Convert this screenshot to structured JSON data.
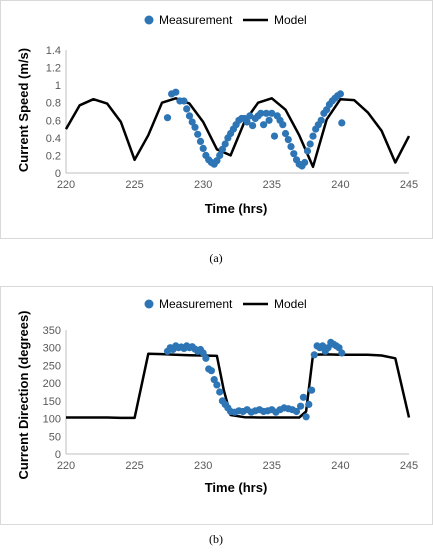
{
  "chart_data": [
    {
      "type": "line",
      "panel_label": "(a)",
      "xlabel": "Time (hrs)",
      "ylabel": "Current Speed (m/s)",
      "xlim": [
        220,
        245
      ],
      "ylim": [
        0,
        1.4
      ],
      "xticks": [
        220,
        225,
        230,
        235,
        240,
        245
      ],
      "yticks": [
        0,
        0.2,
        0.4,
        0.6,
        0.8,
        1.0,
        1.2,
        1.4
      ],
      "ytick_labels": [
        "0",
        "0.2",
        "0.4",
        "0.6",
        "0.8",
        "1",
        "1.2",
        "1.4"
      ],
      "legend_position": "top-center",
      "grid": false,
      "series": [
        {
          "name": "Measurement",
          "kind": "scatter",
          "color": "#2E75B6",
          "x": [
            227.4,
            227.7,
            228.0,
            228.3,
            228.6,
            228.8,
            229.0,
            229.2,
            229.4,
            229.6,
            229.8,
            230.0,
            230.2,
            230.4,
            230.6,
            230.8,
            231.0,
            231.2,
            231.4,
            231.6,
            231.8,
            232.0,
            232.2,
            232.4,
            232.6,
            232.8,
            233.0,
            233.2,
            233.4,
            233.6,
            233.8,
            234.0,
            234.2,
            234.4,
            234.6,
            234.8,
            235.0,
            235.2,
            235.4,
            235.6,
            235.8,
            236.0,
            236.2,
            236.4,
            236.6,
            236.8,
            237.0,
            237.2,
            237.4,
            237.6,
            237.8,
            238.0,
            238.2,
            238.4,
            238.6,
            238.8,
            239.0,
            239.2,
            239.4,
            239.6,
            239.8,
            240.0,
            240.1
          ],
          "y": [
            0.63,
            0.9,
            0.92,
            0.82,
            0.82,
            0.73,
            0.65,
            0.58,
            0.52,
            0.44,
            0.36,
            0.28,
            0.2,
            0.15,
            0.12,
            0.1,
            0.14,
            0.2,
            0.27,
            0.33,
            0.4,
            0.45,
            0.5,
            0.55,
            0.6,
            0.62,
            0.62,
            0.58,
            0.65,
            0.54,
            0.62,
            0.65,
            0.68,
            0.55,
            0.68,
            0.6,
            0.68,
            0.42,
            0.65,
            0.6,
            0.55,
            0.45,
            0.38,
            0.3,
            0.22,
            0.15,
            0.1,
            0.08,
            0.12,
            0.25,
            0.33,
            0.42,
            0.5,
            0.55,
            0.6,
            0.68,
            0.72,
            0.78,
            0.82,
            0.85,
            0.88,
            0.9,
            0.57
          ]
        },
        {
          "name": "Model",
          "kind": "line",
          "color": "#000000",
          "x": [
            220,
            221,
            222,
            223,
            224,
            225,
            226,
            227,
            228,
            229,
            230,
            231,
            232,
            233,
            234,
            235,
            236,
            237,
            238,
            239,
            240,
            241,
            242,
            243,
            244,
            245
          ],
          "y": [
            0.5,
            0.77,
            0.84,
            0.79,
            0.58,
            0.15,
            0.43,
            0.8,
            0.85,
            0.79,
            0.58,
            0.27,
            0.2,
            0.58,
            0.8,
            0.85,
            0.72,
            0.43,
            0.07,
            0.61,
            0.84,
            0.83,
            0.69,
            0.48,
            0.12,
            0.42
          ]
        }
      ]
    },
    {
      "type": "line",
      "panel_label": "(b)",
      "xlabel": "Time (hrs)",
      "ylabel": "Current Direction (degrees)",
      "xlim": [
        220,
        245
      ],
      "ylim": [
        0,
        350
      ],
      "xticks": [
        220,
        225,
        230,
        235,
        240,
        245
      ],
      "yticks": [
        0,
        50,
        100,
        150,
        200,
        250,
        300,
        350
      ],
      "ytick_labels": [
        "0",
        "50",
        "100",
        "150",
        "200",
        "250",
        "300",
        "350"
      ],
      "legend_position": "top-center",
      "grid": false,
      "series": [
        {
          "name": "Measurement",
          "kind": "scatter",
          "color": "#2E75B6",
          "x": [
            227.4,
            227.6,
            227.8,
            228.0,
            228.2,
            228.4,
            228.6,
            228.8,
            229.0,
            229.2,
            229.4,
            229.6,
            229.8,
            230.0,
            230.2,
            230.4,
            230.6,
            230.8,
            231.0,
            231.2,
            231.4,
            231.6,
            231.8,
            232.0,
            232.3,
            232.6,
            232.9,
            233.2,
            233.5,
            233.8,
            234.1,
            234.4,
            234.7,
            235.0,
            235.3,
            235.6,
            235.9,
            236.2,
            236.5,
            236.8,
            237.1,
            237.3,
            237.5,
            237.7,
            237.9,
            238.1,
            238.3,
            238.5,
            238.7,
            238.9,
            239.1,
            239.3,
            239.5,
            239.7,
            239.9,
            240.1
          ],
          "y": [
            290,
            300,
            295,
            305,
            300,
            302,
            298,
            305,
            300,
            303,
            296,
            290,
            295,
            285,
            270,
            240,
            235,
            210,
            195,
            175,
            150,
            140,
            130,
            120,
            118,
            122,
            120,
            125,
            118,
            122,
            125,
            120,
            122,
            125,
            118,
            125,
            130,
            128,
            125,
            120,
            135,
            160,
            105,
            140,
            180,
            280,
            305,
            300,
            305,
            290,
            300,
            315,
            310,
            305,
            300,
            285
          ]
        },
        {
          "name": "Model",
          "kind": "line",
          "color": "#000000",
          "x": [
            220,
            221,
            222,
            223,
            224,
            225,
            226,
            227,
            228,
            229,
            230,
            231,
            231.5,
            232,
            233,
            234,
            235,
            236,
            237,
            237.5,
            238,
            239,
            240,
            241,
            242,
            243,
            244,
            245
          ],
          "y": [
            103,
            103,
            103,
            103,
            102,
            102,
            283,
            282,
            280,
            279,
            278,
            277,
            180,
            110,
            104,
            103,
            103,
            103,
            103,
            120,
            280,
            281,
            280,
            280,
            280,
            278,
            270,
            103
          ]
        }
      ]
    }
  ]
}
